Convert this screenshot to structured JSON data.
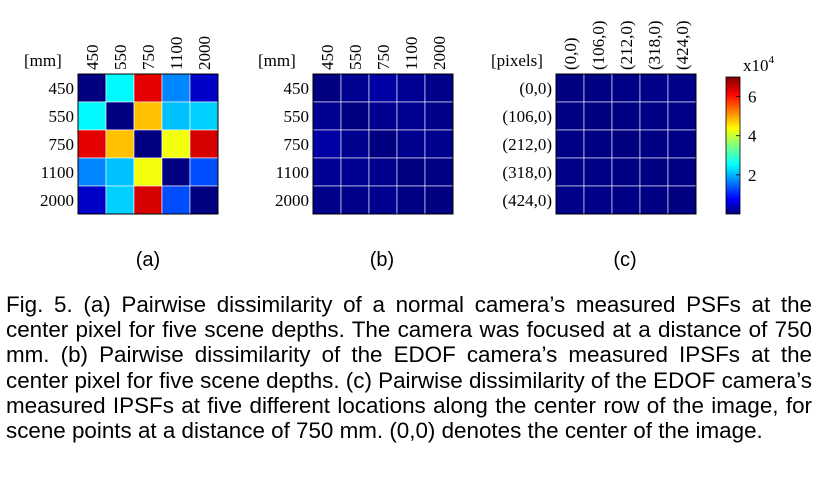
{
  "chart_data": [
    {
      "type": "heatmap",
      "panel_label": "(a)",
      "corner_label": "[mm]",
      "row_labels": [
        "450",
        "550",
        "750",
        "1100",
        "2000"
      ],
      "col_labels": [
        "450",
        "550",
        "750",
        "1100",
        "2000"
      ],
      "values": [
        [
          0,
          2.6,
          6.3,
          1.8,
          0.5
        ],
        [
          2.6,
          0,
          4.8,
          2.2,
          2.3
        ],
        [
          6.3,
          4.8,
          0,
          4.3,
          6.4
        ],
        [
          1.8,
          2.2,
          4.3,
          0,
          1.4
        ],
        [
          0.5,
          2.3,
          6.4,
          1.4,
          0
        ]
      ]
    },
    {
      "type": "heatmap",
      "panel_label": "(b)",
      "corner_label": "[mm]",
      "row_labels": [
        "450",
        "550",
        "750",
        "1100",
        "2000"
      ],
      "col_labels": [
        "450",
        "550",
        "750",
        "1100",
        "2000"
      ],
      "values": [
        [
          0,
          0.12,
          0.25,
          0.14,
          0.08
        ],
        [
          0.12,
          0,
          0.1,
          0.12,
          0.06
        ],
        [
          0.25,
          0.1,
          0,
          0.1,
          0.1
        ],
        [
          0.14,
          0.12,
          0.1,
          0,
          0.04
        ],
        [
          0.08,
          0.06,
          0.1,
          0.04,
          0
        ]
      ]
    },
    {
      "type": "heatmap",
      "panel_label": "(c)",
      "corner_label": "[pixels]",
      "row_labels": [
        "(0,0)",
        "(106,0)",
        "(212,0)",
        "(318,0)",
        "(424,0)"
      ],
      "col_labels": [
        "(0,0)",
        "(106,0)",
        "(212,0)",
        "(318,0)",
        "(424,0)"
      ],
      "values": [
        [
          0,
          0.04,
          0.05,
          0.06,
          0.07
        ],
        [
          0.04,
          0,
          0.04,
          0.05,
          0.06
        ],
        [
          0.05,
          0.04,
          0,
          0.04,
          0.05
        ],
        [
          0.06,
          0.05,
          0.04,
          0,
          0.04
        ],
        [
          0.07,
          0.06,
          0.05,
          0.04,
          0
        ]
      ]
    }
  ],
  "colorbar": {
    "exponent_label": "x10",
    "exponent_power": "4",
    "range": [
      0,
      7
    ],
    "ticks": [
      {
        "value": 2,
        "label": "2"
      },
      {
        "value": 4,
        "label": "4"
      },
      {
        "value": 6,
        "label": "6"
      }
    ]
  },
  "caption": "Fig. 5. (a) Pairwise dissimilarity of a normal camera’s measured PSFs at the center pixel for five scene depths. The camera was focused at a distance of 750 mm. (b) Pairwise dissimilarity of the EDOF camera’s measured IPSFs at the center pixel for five scene depths. (c) Pairwise dissimilarity of the EDOF camera’s measured IPSFs at five different locations along the center row of the image, for scene points at a distance of 750 mm. (0,0) denotes the center of the image."
}
